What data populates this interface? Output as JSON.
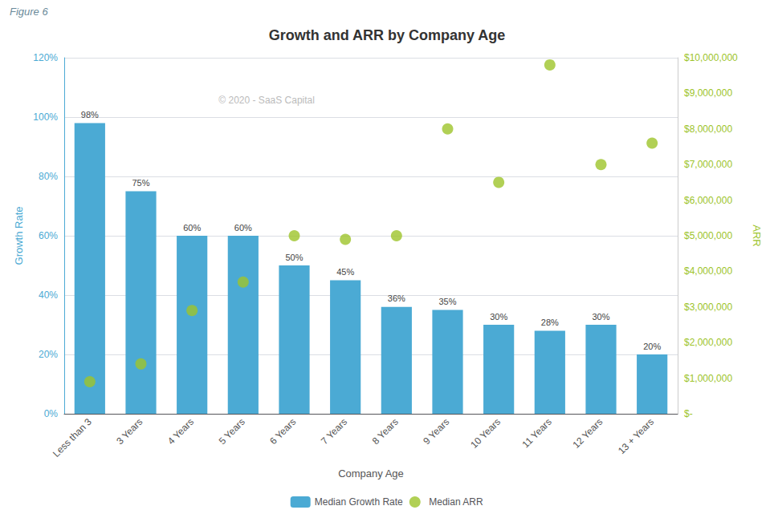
{
  "chart_data": {
    "type": "bar",
    "title": "Growth and ARR by Company Age",
    "annotations": [
      {
        "text": "Figure 6"
      },
      {
        "text": "© 2020 - SaaS Capital"
      }
    ],
    "xlabel": "Company Age",
    "ylabel": "Growth Rate",
    "y2label": "ARR",
    "categories": [
      "Less than 3",
      "3 Years",
      "4 Years",
      "5 Years",
      "6 Years",
      "7 Years",
      "8 Years",
      "9 Years",
      "10 Years",
      "11 Years",
      "12 Years",
      "13 + Years"
    ],
    "series": [
      {
        "name": "Median Growth Rate",
        "type": "bar",
        "color": "#4baad4",
        "values": [
          0.98,
          0.75,
          0.6,
          0.6,
          0.5,
          0.45,
          0.36,
          0.35,
          0.3,
          0.28,
          0.3,
          0.2
        ],
        "value_labels": [
          "98%",
          "75%",
          "60%",
          "60%",
          "50%",
          "45%",
          "36%",
          "35%",
          "30%",
          "28%",
          "30%",
          "20%"
        ],
        "data_labels": true
      },
      {
        "name": "Median ARR",
        "type": "scatter",
        "color": "#9dc42b",
        "marker": "circle",
        "axis": "y2",
        "values": [
          900000,
          1400000,
          2900000,
          3700000,
          5000000,
          4900000,
          5000000,
          8000000,
          6500000,
          9800000,
          7000000,
          7600000
        ]
      }
    ],
    "ylim": [
      0,
      1.2
    ],
    "yticks": [
      {
        "value": 0,
        "label": "0%"
      },
      {
        "value": 0.2,
        "label": "20%"
      },
      {
        "value": 0.4,
        "label": "40%"
      },
      {
        "value": 0.6,
        "label": "60%"
      },
      {
        "value": 0.8,
        "label": "80%"
      },
      {
        "value": 1.0,
        "label": "100%"
      },
      {
        "value": 1.2,
        "label": "120%"
      }
    ],
    "y2lim": [
      0,
      10000000
    ],
    "y2ticks": [
      {
        "value": 0,
        "label": "$-"
      },
      {
        "value": 1000000,
        "label": "$1,000,000"
      },
      {
        "value": 2000000,
        "label": "$2,000,000"
      },
      {
        "value": 3000000,
        "label": "$3,000,000"
      },
      {
        "value": 4000000,
        "label": "$4,000,000"
      },
      {
        "value": 5000000,
        "label": "$5,000,000"
      },
      {
        "value": 6000000,
        "label": "$6,000,000"
      },
      {
        "value": 7000000,
        "label": "$7,000,000"
      },
      {
        "value": 8000000,
        "label": "$8,000,000"
      },
      {
        "value": 9000000,
        "label": "$9,000,000"
      },
      {
        "value": 10000000,
        "label": "$10,000,000"
      }
    ],
    "grid": true,
    "legend": "bottom"
  }
}
